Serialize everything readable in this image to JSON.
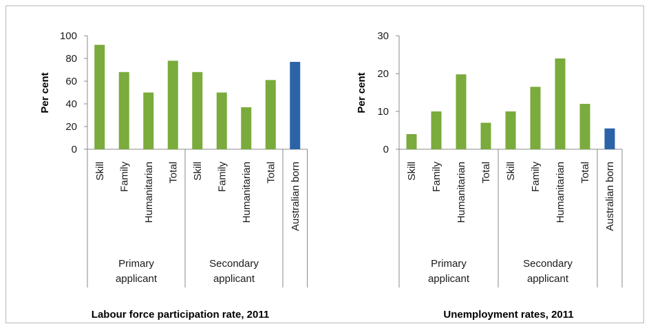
{
  "colors": {
    "series_green": "#7aab3c",
    "australian_born_blue": "#2c63a8",
    "axis": "#8a8a8a"
  },
  "chart_data": [
    {
      "type": "bar",
      "title": "Labour force participation rate, 2011",
      "ylabel": "Per cent",
      "ylim": [
        0,
        100
      ],
      "yticks": [
        0,
        20,
        40,
        60,
        80,
        100
      ],
      "categories": [
        "Skill",
        "Family",
        "Humanitarian",
        "Total",
        "Skill",
        "Family",
        "Humanitarian",
        "Total",
        "Australian born"
      ],
      "values": [
        92,
        68,
        50,
        78,
        68,
        50,
        37,
        61,
        77
      ],
      "bar_colors": [
        "green",
        "green",
        "green",
        "green",
        "green",
        "green",
        "green",
        "green",
        "blue"
      ],
      "groups": [
        {
          "lines": [
            "Primary",
            "applicant"
          ],
          "start": 0,
          "end": 3
        },
        {
          "lines": [
            "Secondary",
            "applicant"
          ],
          "start": 4,
          "end": 7
        }
      ],
      "grid": false,
      "legend": "none"
    },
    {
      "type": "bar",
      "title": "Unemployment rates, 2011",
      "ylabel": "Per cent",
      "ylim": [
        0,
        30
      ],
      "yticks": [
        0,
        10,
        20,
        30
      ],
      "categories": [
        "Skill",
        "Family",
        "Humanitarian",
        "Total",
        "Skill",
        "Family",
        "Humanitarian",
        "Total",
        "Australian born"
      ],
      "values": [
        4,
        10,
        19.8,
        7,
        10,
        16.5,
        24,
        12,
        5.5
      ],
      "bar_colors": [
        "green",
        "green",
        "green",
        "green",
        "green",
        "green",
        "green",
        "green",
        "blue"
      ],
      "groups": [
        {
          "lines": [
            "Primary",
            "applicant"
          ],
          "start": 0,
          "end": 3
        },
        {
          "lines": [
            "Secondary",
            "applicant"
          ],
          "start": 4,
          "end": 7
        }
      ],
      "grid": false,
      "legend": "none"
    }
  ]
}
